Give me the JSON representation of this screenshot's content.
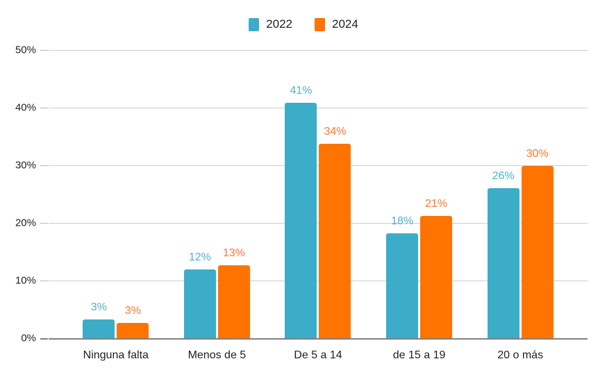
{
  "colors": {
    "background": "#ffffff",
    "grid": "#cccccc",
    "axis_line": "#808080",
    "text": "#1f1f1f"
  },
  "chart_data": {
    "type": "bar",
    "title": "",
    "categories": [
      "Ninguna falta",
      "Menos de 5",
      "De 5 a 14",
      "de 15 a 19",
      "20 o más"
    ],
    "series": [
      {
        "name": "2022",
        "color": "#3badc9",
        "label_color": "#4fb2ce",
        "values": [
          3,
          12,
          41,
          18,
          26
        ],
        "value_labels": [
          "3%",
          "12%",
          "41%",
          "18%",
          "26%"
        ],
        "bar_heights_pct": [
          3.2,
          11.9,
          40.8,
          18.2,
          26.0
        ]
      },
      {
        "name": "2024",
        "color": "#ff7300",
        "label_color": "#ff7733",
        "values": [
          3,
          13,
          34,
          21,
          30
        ],
        "value_labels": [
          "3%",
          "13%",
          "34%",
          "21%",
          "30%"
        ],
        "bar_heights_pct": [
          2.6,
          12.7,
          33.7,
          21.2,
          29.9
        ]
      }
    ],
    "y_axis": {
      "min": 0,
      "max": 50,
      "step": 10,
      "tick_labels": [
        "0%",
        "10%",
        "20%",
        "30%",
        "40%",
        "50%"
      ]
    },
    "xlabel": "",
    "ylabel": "",
    "grid": true,
    "legend_position": "top"
  }
}
